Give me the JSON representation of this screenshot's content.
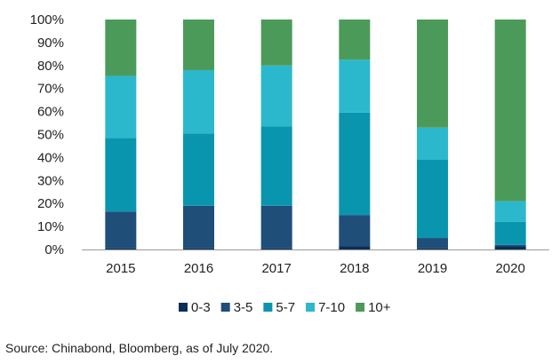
{
  "chart_data": {
    "type": "bar",
    "stacked": true,
    "categories": [
      "2015",
      "2016",
      "2017",
      "2018",
      "2019",
      "2020"
    ],
    "ylim": [
      0,
      100
    ],
    "yticks": [
      "0%",
      "10%",
      "20%",
      "30%",
      "40%",
      "50%",
      "60%",
      "70%",
      "80%",
      "90%",
      "100%"
    ],
    "series": [
      {
        "name": "0-3",
        "color": "#0a2f57",
        "values": [
          0.5,
          0.5,
          0.5,
          1.5,
          0.5,
          1.5
        ]
      },
      {
        "name": "3-5",
        "color": "#1f4e79",
        "values": [
          16,
          18.5,
          18.5,
          13.5,
          4.5,
          0.5
        ]
      },
      {
        "name": "5-7",
        "color": "#0a95ae",
        "values": [
          32,
          31.5,
          34.5,
          44.5,
          34,
          10
        ]
      },
      {
        "name": "7-10",
        "color": "#2cb8cc",
        "values": [
          27,
          27.5,
          26.5,
          23,
          14,
          9
        ]
      },
      {
        "name": "10+",
        "color": "#4c9a5a",
        "values": [
          24.5,
          22,
          20,
          17.5,
          47,
          79
        ]
      }
    ],
    "legend_position": "bottom",
    "grid": false
  },
  "source_note": "Source: Chinabond, Bloomberg, as of July 2020."
}
